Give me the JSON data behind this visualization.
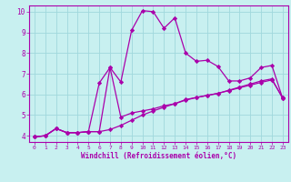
{
  "xlabel": "Windchill (Refroidissement éolien,°C)",
  "background_color": "#c8f0f0",
  "grid_color": "#a0d8dc",
  "line_color": "#aa00aa",
  "xlim": [
    -0.5,
    23.5
  ],
  "ylim": [
    3.7,
    10.3
  ],
  "xticks": [
    0,
    1,
    2,
    3,
    4,
    5,
    6,
    7,
    8,
    9,
    10,
    11,
    12,
    13,
    14,
    15,
    16,
    17,
    18,
    19,
    20,
    21,
    22,
    23
  ],
  "yticks": [
    4,
    5,
    6,
    7,
    8,
    9,
    10
  ],
  "series_upper_x": [
    0,
    1,
    2,
    3,
    4,
    5,
    6,
    7,
    8,
    9,
    10,
    11,
    12,
    13,
    14,
    15,
    16,
    17,
    18,
    19,
    20,
    21,
    22,
    23
  ],
  "series_upper_y": [
    3.95,
    4.0,
    4.35,
    4.15,
    4.15,
    4.2,
    6.55,
    7.3,
    6.6,
    9.1,
    10.05,
    10.0,
    9.2,
    9.7,
    8.0,
    7.6,
    7.65,
    7.35,
    6.65,
    6.65,
    6.8,
    7.3,
    7.4,
    5.8
  ],
  "series_mid_x": [
    0,
    1,
    2,
    3,
    4,
    5,
    6,
    7,
    8,
    9,
    10,
    11,
    12,
    13,
    14,
    15,
    16,
    17,
    18,
    19,
    20,
    21,
    22,
    23
  ],
  "series_mid_y": [
    3.95,
    4.0,
    4.35,
    4.15,
    4.15,
    4.2,
    4.2,
    7.3,
    4.9,
    5.1,
    5.2,
    5.3,
    5.45,
    5.55,
    5.75,
    5.85,
    5.95,
    6.05,
    6.2,
    6.35,
    6.5,
    6.65,
    6.75,
    5.8
  ],
  "series_lower_x": [
    0,
    1,
    2,
    3,
    4,
    5,
    6,
    7,
    8,
    9,
    10,
    11,
    12,
    13,
    14,
    15,
    16,
    17,
    18,
    19,
    20,
    21,
    22,
    23
  ],
  "series_lower_y": [
    3.95,
    4.0,
    4.35,
    4.15,
    4.15,
    4.2,
    4.2,
    4.3,
    4.5,
    4.75,
    5.0,
    5.2,
    5.38,
    5.55,
    5.72,
    5.85,
    5.95,
    6.05,
    6.18,
    6.32,
    6.45,
    6.58,
    6.7,
    5.85
  ]
}
